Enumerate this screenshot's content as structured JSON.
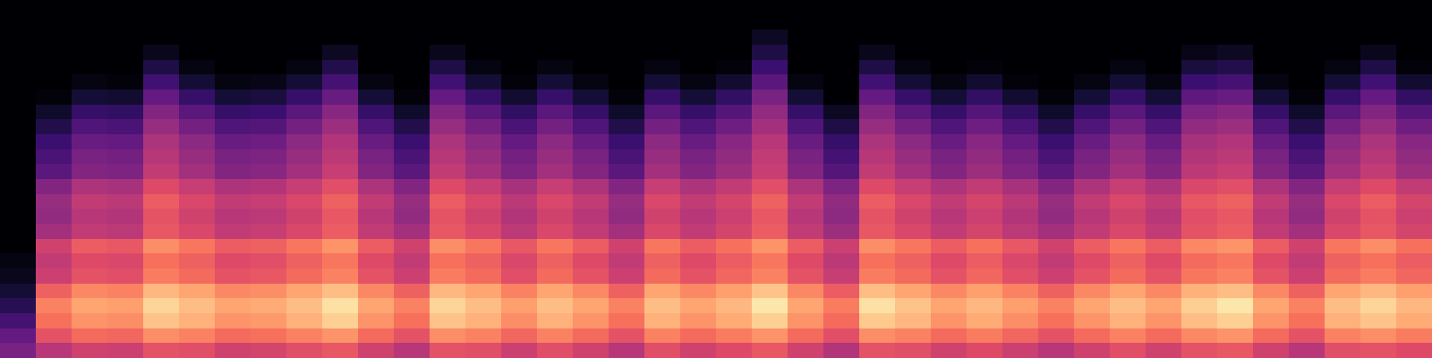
{
  "chart_data": {
    "type": "heatmap",
    "color": "magma",
    "tick_labels": false,
    "zlim": [
      -80,
      0
    ],
    "z": [
      [
        -52,
        -40,
        -35,
        -36,
        -30,
        -31,
        -35,
        -34,
        -31,
        -29,
        -35,
        -40,
        -30,
        -31,
        -36,
        -31,
        -35,
        -40,
        -31,
        -35,
        -32,
        -29,
        -35,
        -41,
        -30,
        -31,
        -35,
        -32,
        -36,
        -40,
        -35,
        -31,
        -35,
        -30,
        -29,
        -35,
        -40,
        -31,
        -30,
        -32
      ],
      [
        -56,
        -30,
        -25,
        -26,
        -19,
        -21,
        -25,
        -24,
        -21,
        -18,
        -25,
        -30,
        -19,
        -21,
        -26,
        -21,
        -25,
        -30,
        -21,
        -25,
        -22,
        -18,
        -25,
        -31,
        -19,
        -21,
        -25,
        -22,
        -26,
        -30,
        -25,
        -21,
        -25,
        -20,
        -18,
        -25,
        -30,
        -21,
        -19,
        -22
      ],
      [
        -62,
        -24,
        -18,
        -19,
        -10,
        -13,
        -18,
        -17,
        -13,
        -8,
        -18,
        -24,
        -10,
        -13,
        -19,
        -13,
        -18,
        -24,
        -13,
        -18,
        -14,
        -8,
        -18,
        -25,
        -9,
        -12,
        -18,
        -14,
        -19,
        -24,
        -18,
        -13,
        -18,
        -11,
        -8,
        -18,
        -24,
        -13,
        -10,
        -14
      ],
      [
        -68,
        -21,
        -15,
        -16,
        -7,
        -11,
        -15,
        -14,
        -11,
        -5,
        -15,
        -21,
        -7,
        -11,
        -16,
        -11,
        -15,
        -21,
        -11,
        -15,
        -12,
        -4,
        -15,
        -22,
        -5,
        -10,
        -15,
        -12,
        -16,
        -21,
        -15,
        -11,
        -15,
        -8,
        -4,
        -15,
        -21,
        -11,
        -7,
        -12
      ],
      [
        -72,
        -27,
        -20,
        -21,
        -12,
        -15,
        -20,
        -19,
        -15,
        -11,
        -20,
        -27,
        -12,
        -15,
        -21,
        -15,
        -20,
        -27,
        -15,
        -20,
        -16,
        -10,
        -20,
        -28,
        -11,
        -15,
        -20,
        -16,
        -21,
        -27,
        -20,
        -15,
        -20,
        -13,
        -11,
        -20,
        -27,
        -15,
        -12,
        -16
      ],
      [
        -76,
        -36,
        -30,
        -31,
        -22,
        -25,
        -30,
        -29,
        -25,
        -21,
        -30,
        -36,
        -22,
        -25,
        -31,
        -25,
        -30,
        -36,
        -25,
        -30,
        -26,
        -21,
        -30,
        -37,
        -22,
        -25,
        -30,
        -26,
        -31,
        -36,
        -30,
        -25,
        -30,
        -23,
        -21,
        -30,
        -36,
        -25,
        -22,
        -26
      ],
      [
        -78,
        -38,
        -32,
        -33,
        -24,
        -27,
        -32,
        -31,
        -27,
        -23,
        -32,
        -38,
        -24,
        -27,
        -33,
        -27,
        -32,
        -38,
        -27,
        -32,
        -28,
        -23,
        -32,
        -39,
        -24,
        -27,
        -32,
        -28,
        -33,
        -38,
        -32,
        -27,
        -32,
        -25,
        -23,
        -32,
        -38,
        -27,
        -24,
        -28
      ],
      [
        -80,
        -35,
        -28,
        -29,
        -19,
        -23,
        -28,
        -27,
        -23,
        -18,
        -28,
        -35,
        -19,
        -23,
        -29,
        -23,
        -28,
        -35,
        -23,
        -28,
        -24,
        -18,
        -28,
        -36,
        -19,
        -23,
        -28,
        -24,
        -29,
        -35,
        -28,
        -23,
        -28,
        -20,
        -18,
        -28,
        -35,
        -23,
        -19,
        -24
      ],
      [
        -80,
        -44,
        -38,
        -39,
        -29,
        -33,
        -38,
        -37,
        -33,
        -28,
        -38,
        -44,
        -29,
        -33,
        -39,
        -33,
        -38,
        -44,
        -33,
        -38,
        -34,
        -28,
        -38,
        -45,
        -29,
        -33,
        -38,
        -34,
        -39,
        -44,
        -38,
        -33,
        -38,
        -30,
        -28,
        -38,
        -44,
        -33,
        -29,
        -34
      ],
      [
        -80,
        -47,
        -40,
        -41,
        -30,
        -35,
        -40,
        -39,
        -35,
        -29,
        -40,
        -47,
        -30,
        -35,
        -41,
        -35,
        -40,
        -47,
        -35,
        -40,
        -36,
        -29,
        -40,
        -48,
        -30,
        -35,
        -40,
        -36,
        -41,
        -47,
        -40,
        -35,
        -40,
        -31,
        -29,
        -40,
        -47,
        -35,
        -30,
        -36
      ],
      [
        -80,
        -46,
        -38,
        -39,
        -28,
        -33,
        -38,
        -37,
        -33,
        -27,
        -38,
        -46,
        -28,
        -33,
        -39,
        -33,
        -38,
        -46,
        -33,
        -38,
        -34,
        -27,
        -38,
        -47,
        -28,
        -33,
        -38,
        -34,
        -39,
        -46,
        -38,
        -33,
        -38,
        -29,
        -27,
        -38,
        -46,
        -33,
        -28,
        -34
      ],
      [
        -80,
        -50,
        -42,
        -43,
        -32,
        -37,
        -42,
        -41,
        -37,
        -31,
        -42,
        -50,
        -32,
        -37,
        -43,
        -37,
        -42,
        -50,
        -37,
        -42,
        -38,
        -31,
        -42,
        -51,
        -32,
        -37,
        -42,
        -38,
        -43,
        -50,
        -42,
        -37,
        -42,
        -33,
        -31,
        -42,
        -50,
        -37,
        -32,
        -38
      ],
      [
        -80,
        -58,
        -50,
        -51,
        -38,
        -44,
        -50,
        -49,
        -44,
        -37,
        -50,
        -58,
        -38,
        -44,
        -51,
        -44,
        -50,
        -58,
        -44,
        -50,
        -45,
        -37,
        -50,
        -59,
        -38,
        -44,
        -50,
        -45,
        -51,
        -58,
        -50,
        -44,
        -50,
        -39,
        -37,
        -50,
        -58,
        -44,
        -38,
        -45
      ],
      [
        -80,
        -61,
        -52,
        -53,
        -40,
        -46,
        -52,
        -51,
        -46,
        -39,
        -52,
        -61,
        -40,
        -46,
        -53,
        -46,
        -52,
        -61,
        -46,
        -52,
        -47,
        -38,
        -52,
        -62,
        -40,
        -46,
        -52,
        -47,
        -53,
        -61,
        -52,
        -46,
        -52,
        -41,
        -39,
        -52,
        -61,
        -46,
        -40,
        -47
      ],
      [
        -80,
        -64,
        -55,
        -56,
        -42,
        -48,
        -55,
        -54,
        -48,
        -41,
        -55,
        -64,
        -42,
        -48,
        -56,
        -48,
        -55,
        -64,
        -48,
        -55,
        -49,
        -40,
        -55,
        -65,
        -42,
        -48,
        -55,
        -49,
        -56,
        -64,
        -55,
        -48,
        -55,
        -43,
        -41,
        -55,
        -64,
        -48,
        -42,
        -49
      ],
      [
        -80,
        -69,
        -60,
        -61,
        -46,
        -53,
        -60,
        -59,
        -53,
        -45,
        -60,
        -69,
        -46,
        -53,
        -61,
        -53,
        -60,
        -69,
        -53,
        -60,
        -54,
        -44,
        -60,
        -70,
        -46,
        -53,
        -60,
        -54,
        -61,
        -69,
        -60,
        -53,
        -60,
        -47,
        -45,
        -60,
        -69,
        -53,
        -46,
        -54
      ],
      [
        -80,
        -74,
        -65,
        -66,
        -50,
        -58,
        -65,
        -64,
        -58,
        -49,
        -65,
        -74,
        -50,
        -58,
        -66,
        -58,
        -65,
        -74,
        -58,
        -65,
        -59,
        -47,
        -65,
        -75,
        -50,
        -58,
        -65,
        -59,
        -66,
        -74,
        -65,
        -58,
        -65,
        -51,
        -49,
        -65,
        -74,
        -58,
        -50,
        -59
      ],
      [
        -80,
        -79,
        -72,
        -73,
        -56,
        -65,
        -72,
        -71,
        -65,
        -55,
        -72,
        -79,
        -56,
        -65,
        -73,
        -65,
        -72,
        -79,
        -65,
        -72,
        -66,
        -52,
        -72,
        -80,
        -56,
        -65,
        -72,
        -66,
        -73,
        -79,
        -72,
        -65,
        -72,
        -57,
        -55,
        -72,
        -79,
        -65,
        -56,
        -66
      ],
      [
        -80,
        -80,
        -78,
        -79,
        -63,
        -72,
        -78,
        -77,
        -72,
        -62,
        -78,
        -80,
        -63,
        -72,
        -79,
        -72,
        -78,
        -80,
        -72,
        -78,
        -73,
        -58,
        -78,
        -80,
        -63,
        -72,
        -78,
        -73,
        -79,
        -80,
        -78,
        -72,
        -78,
        -64,
        -62,
        -78,
        -80,
        -72,
        -63,
        -73
      ],
      [
        -80,
        -80,
        -80,
        -80,
        -70,
        -78,
        -80,
        -80,
        -78,
        -69,
        -80,
        -80,
        -70,
        -78,
        -80,
        -78,
        -80,
        -80,
        -78,
        -80,
        -79,
        -64,
        -80,
        -80,
        -70,
        -78,
        -80,
        -79,
        -80,
        -80,
        -80,
        -78,
        -80,
        -71,
        -69,
        -80,
        -80,
        -78,
        -70,
        -79
      ],
      [
        -80,
        -80,
        -80,
        -80,
        -76,
        -80,
        -80,
        -80,
        -80,
        -75,
        -80,
        -80,
        -76,
        -80,
        -80,
        -80,
        -80,
        -80,
        -80,
        -80,
        -80,
        -70,
        -80,
        -80,
        -76,
        -80,
        -80,
        -80,
        -80,
        -80,
        -80,
        -80,
        -80,
        -77,
        -75,
        -80,
        -80,
        -80,
        -76,
        -80
      ],
      [
        -80,
        -80,
        -80,
        -80,
        -80,
        -80,
        -80,
        -80,
        -80,
        -80,
        -80,
        -80,
        -80,
        -80,
        -80,
        -80,
        -80,
        -80,
        -80,
        -80,
        -80,
        -75,
        -80,
        -80,
        -80,
        -80,
        -80,
        -80,
        -80,
        -80,
        -80,
        -80,
        -80,
        -80,
        -80,
        -80,
        -80,
        -80,
        -80,
        -80
      ],
      [
        -80,
        -80,
        -80,
        -80,
        -80,
        -80,
        -80,
        -80,
        -80,
        -80,
        -80,
        -80,
        -80,
        -80,
        -80,
        -80,
        -80,
        -80,
        -80,
        -80,
        -80,
        -80,
        -80,
        -80,
        -80,
        -80,
        -80,
        -80,
        -80,
        -80,
        -80,
        -80,
        -80,
        -80,
        -80,
        -80,
        -80,
        -80,
        -80,
        -80
      ],
      [
        -80,
        -80,
        -80,
        -80,
        -80,
        -80,
        -80,
        -80,
        -80,
        -80,
        -80,
        -80,
        -80,
        -80,
        -80,
        -80,
        -80,
        -80,
        -80,
        -80,
        -80,
        -80,
        -80,
        -80,
        -80,
        -80,
        -80,
        -80,
        -80,
        -80,
        -80,
        -80,
        -80,
        -80,
        -80,
        -80,
        -80,
        -80,
        -80,
        -80
      ]
    ]
  }
}
